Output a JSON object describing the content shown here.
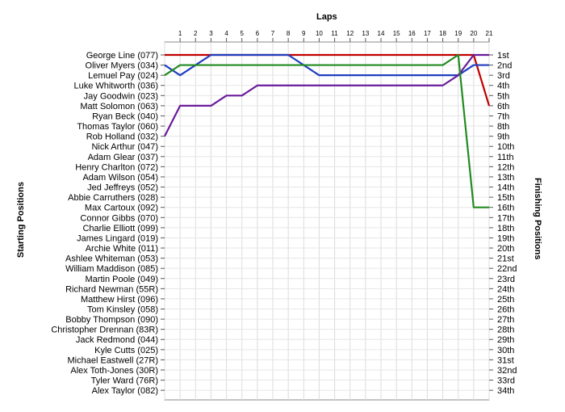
{
  "chart_data": {
    "type": "line",
    "title": "",
    "xlabel": "Laps",
    "ylabel_left": "Starting Positions",
    "ylabel_right": "Finishing Positions",
    "x_ticks": [
      1,
      2,
      3,
      4,
      5,
      6,
      7,
      8,
      9,
      10,
      11,
      12,
      13,
      14,
      15,
      16,
      17,
      18,
      19,
      20,
      21
    ],
    "starting_positions": [
      "George Line (077)",
      "Oliver Myers (034)",
      "Lemuel Pay (024)",
      "Luke Whitworth (036)",
      "Jay Goodwin (023)",
      "Matt Solomon (063)",
      "Ryan Beck (040)",
      "Thomas Taylor (060)",
      "Rob Holland (032)",
      "Nick Arthur (047)",
      "Adam Glear (037)",
      "Henry Charlton (072)",
      "Adam Wilson (054)",
      "Jed Jeffreys (052)",
      "Abbie Carruthers (028)",
      "Max Cartoux (092)",
      "Connor Gibbs (070)",
      "Charlie Elliott (099)",
      "James Lingard (019)",
      "Archie White (011)",
      "Ashlee Whiteman (053)",
      "William Maddison (085)",
      "Martin Poole (049)",
      "Richard Newman (55R)",
      "Matthew Hirst (096)",
      "Tom Kinsley (058)",
      "Bobby Thompson (090)",
      "Christopher Drennan (83R)",
      "Jack Redmond (044)",
      "Kyle Cutts (025)",
      "Michael Eastwell (27R)",
      "Alex Toth-Jones (30R)",
      "Tyler Ward (76R)",
      "Alex Taylor (082)"
    ],
    "finishing_positions": [
      "1st",
      "2nd",
      "3rd",
      "4th",
      "5th",
      "6th",
      "7th",
      "8th",
      "9th",
      "10th",
      "11th",
      "12th",
      "13th",
      "14th",
      "15th",
      "16th",
      "17th",
      "18th",
      "19th",
      "20th",
      "21st",
      "22nd",
      "23rd",
      "24th",
      "25th",
      "26th",
      "27th",
      "28th",
      "29th",
      "30th",
      "31st",
      "32nd",
      "33rd",
      "34th"
    ],
    "y_range": [
      1,
      34
    ],
    "y_inverted": true,
    "x_range": [
      0,
      21
    ],
    "grid": true,
    "series": [
      {
        "color": "#c00000",
        "positions": [
          1,
          1,
          1,
          1,
          1,
          1,
          1,
          1,
          1,
          1,
          1,
          1,
          1,
          1,
          1,
          1,
          1,
          1,
          1,
          1,
          1,
          6
        ]
      },
      {
        "color": "#1f3fbf",
        "positions": [
          2,
          3,
          2,
          1,
          1,
          1,
          1,
          1,
          1,
          2,
          3,
          3,
          3,
          3,
          3,
          3,
          3,
          3,
          3,
          3,
          2,
          2
        ]
      },
      {
        "color": "#6a1b9a",
        "positions": [
          9,
          6,
          6,
          6,
          5,
          5,
          4,
          4,
          4,
          4,
          4,
          4,
          4,
          4,
          4,
          4,
          4,
          4,
          4,
          3,
          1,
          1
        ]
      },
      {
        "color": "#228b22",
        "positions": [
          3,
          2,
          2,
          2,
          2,
          2,
          2,
          2,
          2,
          2,
          2,
          2,
          2,
          2,
          2,
          2,
          2,
          2,
          2,
          1,
          16,
          16
        ]
      }
    ]
  }
}
